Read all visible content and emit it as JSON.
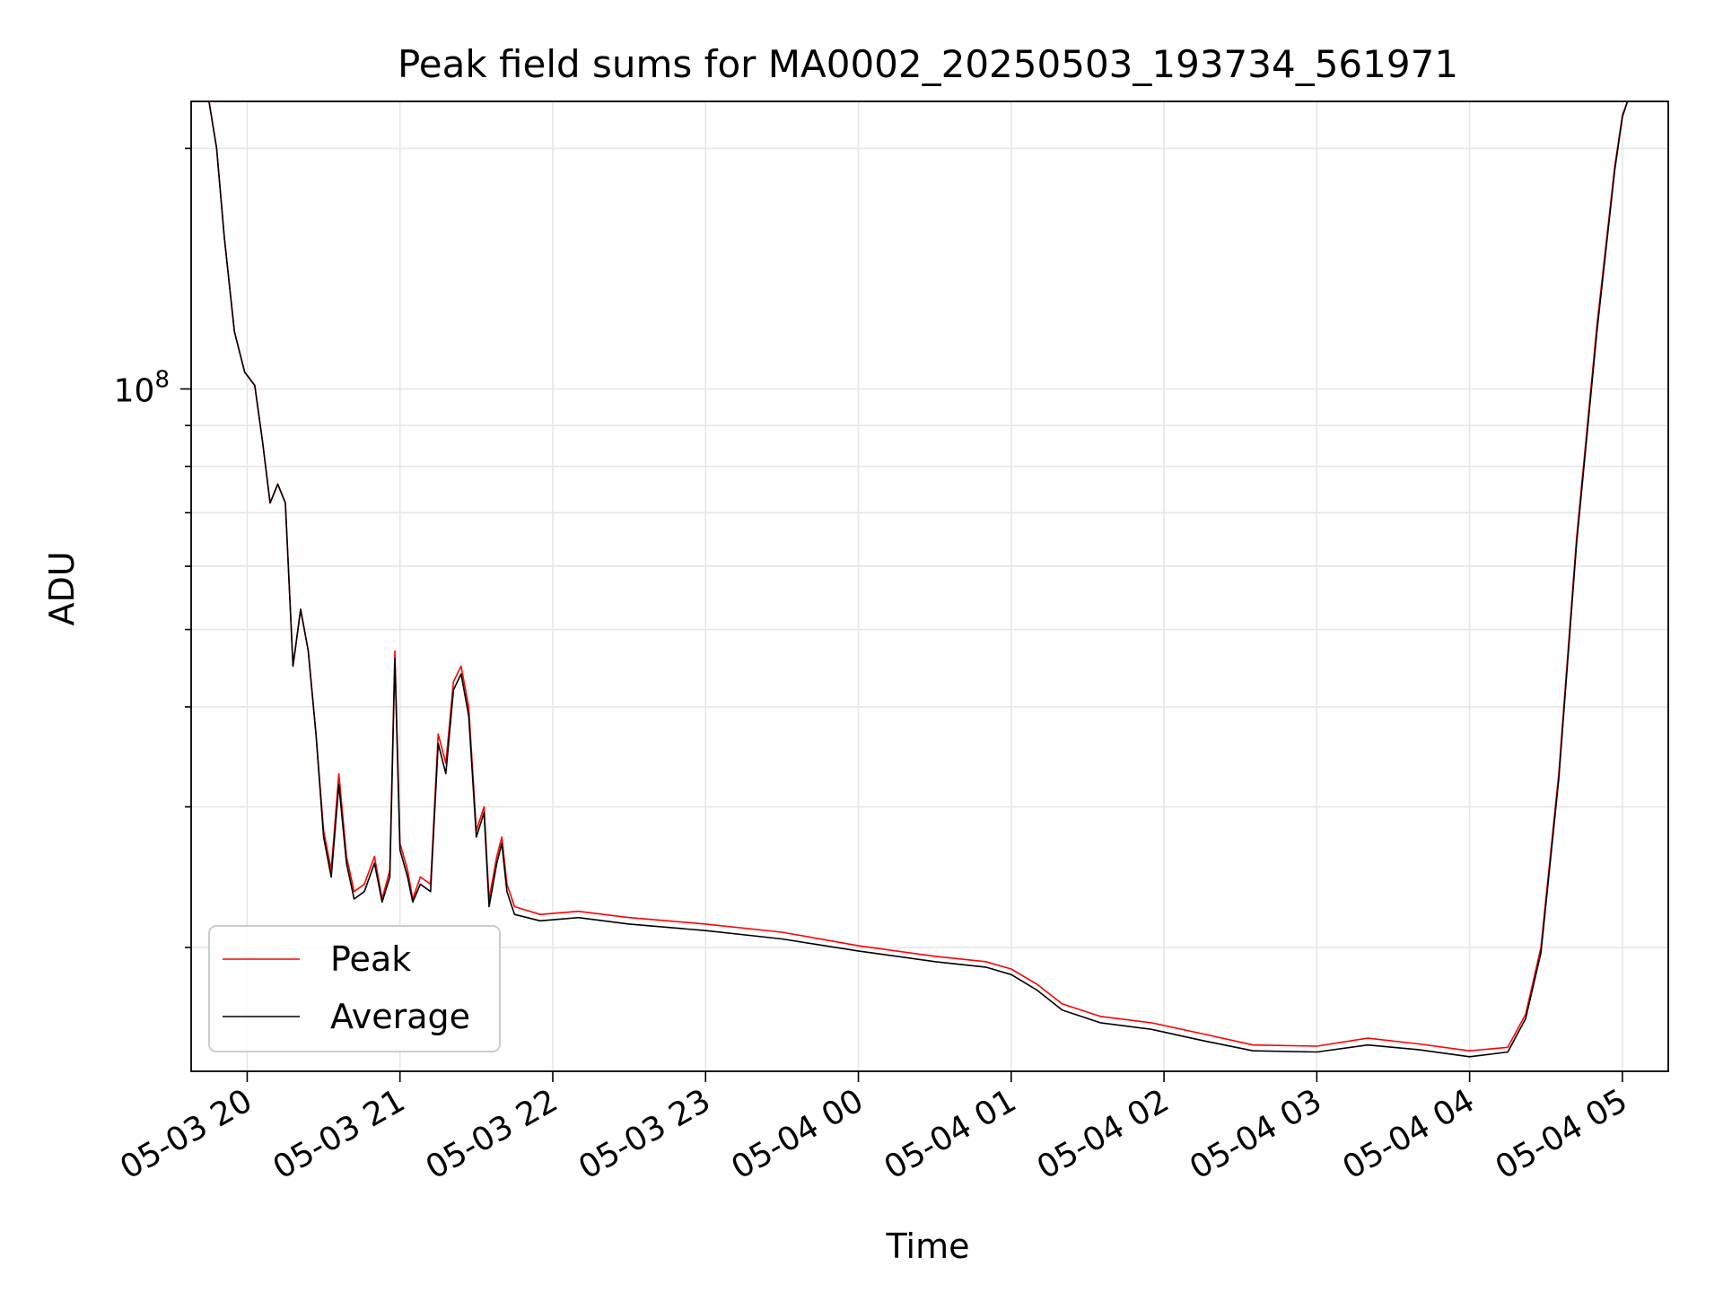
{
  "chart_data": {
    "type": "line",
    "title": "Peak field sums for MA0002_20250503_193734_561971",
    "xlabel": "Time",
    "ylabel": "ADU",
    "x_tick_labels": [
      "05-03 20",
      "05-03 21",
      "05-03 22",
      "05-03 23",
      "05-04 00",
      "05-04 01",
      "05-04 02",
      "05-04 03",
      "05-04 04",
      "05-04 05"
    ],
    "x_range": [
      "2025-05-03 19:38",
      "2025-05-04 05:18"
    ],
    "y_scale": "log",
    "y_range": [
      14000000,
      229000000
    ],
    "y_tick_label": {
      "base": "10",
      "exponent": "8"
    },
    "grid": true,
    "legend_position": "lower-left",
    "series": [
      {
        "name": "Peak",
        "color": "#ff0000",
        "points": [
          [
            "2025-05-03 19:38",
            229000000
          ],
          [
            "2025-05-03 19:45",
            229000000
          ],
          [
            "2025-05-03 19:48",
            200000000
          ],
          [
            "2025-05-03 19:51",
            155000000
          ],
          [
            "2025-05-03 19:55",
            118000000
          ],
          [
            "2025-05-03 19:59",
            105000000
          ],
          [
            "2025-05-03 20:03",
            101000000
          ],
          [
            "2025-05-03 20:06",
            86000000
          ],
          [
            "2025-05-03 20:09",
            72000000
          ],
          [
            "2025-05-03 20:12",
            76000000
          ],
          [
            "2025-05-03 20:15",
            72000000
          ],
          [
            "2025-05-03 20:18",
            45000000
          ],
          [
            "2025-05-03 20:21",
            53000000
          ],
          [
            "2025-05-03 20:24",
            47000000
          ],
          [
            "2025-05-03 20:27",
            37000000
          ],
          [
            "2025-05-03 20:30",
            28000000
          ],
          [
            "2025-05-03 20:33",
            25000000
          ],
          [
            "2025-05-03 20:36",
            33000000
          ],
          [
            "2025-05-03 20:39",
            26000000
          ],
          [
            "2025-05-03 20:42",
            23500000
          ],
          [
            "2025-05-03 20:46",
            24000000
          ],
          [
            "2025-05-03 20:50",
            26000000
          ],
          [
            "2025-05-03 20:53",
            23000000
          ],
          [
            "2025-05-03 20:56",
            25000000
          ],
          [
            "2025-05-03 20:58",
            47000000
          ],
          [
            "2025-05-03 21:00",
            27000000
          ],
          [
            "2025-05-03 21:03",
            25000000
          ],
          [
            "2025-05-03 21:05",
            23000000
          ],
          [
            "2025-05-03 21:08",
            24500000
          ],
          [
            "2025-05-03 21:12",
            24000000
          ],
          [
            "2025-05-03 21:15",
            37000000
          ],
          [
            "2025-05-03 21:18",
            34000000
          ],
          [
            "2025-05-03 21:21",
            43000000
          ],
          [
            "2025-05-03 21:24",
            45000000
          ],
          [
            "2025-05-03 21:27",
            40000000
          ],
          [
            "2025-05-03 21:30",
            28000000
          ],
          [
            "2025-05-03 21:33",
            30000000
          ],
          [
            "2025-05-03 21:35",
            23000000
          ],
          [
            "2025-05-03 21:38",
            26000000
          ],
          [
            "2025-05-03 21:40",
            27500000
          ],
          [
            "2025-05-03 21:42",
            24000000
          ],
          [
            "2025-05-03 21:45",
            22500000
          ],
          [
            "2025-05-03 21:55",
            22000000
          ],
          [
            "2025-05-03 22:10",
            22200000
          ],
          [
            "2025-05-03 22:30",
            21800000
          ],
          [
            "2025-05-03 23:00",
            21400000
          ],
          [
            "2025-05-03 23:30",
            20900000
          ],
          [
            "2025-05-04 00:00",
            20100000
          ],
          [
            "2025-05-04 00:30",
            19500000
          ],
          [
            "2025-05-04 00:50",
            19200000
          ],
          [
            "2025-05-04 01:00",
            18800000
          ],
          [
            "2025-05-04 01:10",
            18000000
          ],
          [
            "2025-05-04 01:20",
            17000000
          ],
          [
            "2025-05-04 01:35",
            16400000
          ],
          [
            "2025-05-04 01:55",
            16100000
          ],
          [
            "2025-05-04 02:15",
            15600000
          ],
          [
            "2025-05-04 02:35",
            15100000
          ],
          [
            "2025-05-04 03:00",
            15050000
          ],
          [
            "2025-05-04 03:20",
            15400000
          ],
          [
            "2025-05-04 03:40",
            15150000
          ],
          [
            "2025-05-04 04:00",
            14850000
          ],
          [
            "2025-05-04 04:15",
            15000000
          ],
          [
            "2025-05-04 04:22",
            16500000
          ],
          [
            "2025-05-04 04:28",
            20000000
          ],
          [
            "2025-05-04 04:35",
            33000000
          ],
          [
            "2025-05-04 04:42",
            65000000
          ],
          [
            "2025-05-04 04:50",
            120000000
          ],
          [
            "2025-05-04 04:57",
            190000000
          ],
          [
            "2025-05-04 05:00",
            220000000
          ],
          [
            "2025-05-04 05:02",
            229000000
          ]
        ]
      },
      {
        "name": "Average",
        "color": "#000000",
        "points": [
          [
            "2025-05-03 19:38",
            229000000
          ],
          [
            "2025-05-03 19:45",
            229000000
          ],
          [
            "2025-05-03 19:48",
            200000000
          ],
          [
            "2025-05-03 19:51",
            155000000
          ],
          [
            "2025-05-03 19:55",
            118000000
          ],
          [
            "2025-05-03 19:59",
            105000000
          ],
          [
            "2025-05-03 20:03",
            101000000
          ],
          [
            "2025-05-03 20:06",
            86000000
          ],
          [
            "2025-05-03 20:09",
            72000000
          ],
          [
            "2025-05-03 20:12",
            76000000
          ],
          [
            "2025-05-03 20:15",
            72000000
          ],
          [
            "2025-05-03 20:18",
            45000000
          ],
          [
            "2025-05-03 20:21",
            53000000
          ],
          [
            "2025-05-03 20:24",
            47000000
          ],
          [
            "2025-05-03 20:27",
            37000000
          ],
          [
            "2025-05-03 20:30",
            27500000
          ],
          [
            "2025-05-03 20:33",
            24500000
          ],
          [
            "2025-05-03 20:36",
            32000000
          ],
          [
            "2025-05-03 20:39",
            25500000
          ],
          [
            "2025-05-03 20:42",
            23000000
          ],
          [
            "2025-05-03 20:46",
            23500000
          ],
          [
            "2025-05-03 20:50",
            25500000
          ],
          [
            "2025-05-03 20:53",
            22800000
          ],
          [
            "2025-05-03 20:56",
            24500000
          ],
          [
            "2025-05-03 20:58",
            46000000
          ],
          [
            "2025-05-03 21:00",
            26500000
          ],
          [
            "2025-05-03 21:03",
            24500000
          ],
          [
            "2025-05-03 21:05",
            22800000
          ],
          [
            "2025-05-03 21:08",
            24000000
          ],
          [
            "2025-05-03 21:12",
            23500000
          ],
          [
            "2025-05-03 21:15",
            36000000
          ],
          [
            "2025-05-03 21:18",
            33000000
          ],
          [
            "2025-05-03 21:21",
            42000000
          ],
          [
            "2025-05-03 21:24",
            44000000
          ],
          [
            "2025-05-03 21:27",
            39000000
          ],
          [
            "2025-05-03 21:30",
            27500000
          ],
          [
            "2025-05-03 21:33",
            29500000
          ],
          [
            "2025-05-03 21:35",
            22500000
          ],
          [
            "2025-05-03 21:38",
            25500000
          ],
          [
            "2025-05-03 21:40",
            27000000
          ],
          [
            "2025-05-03 21:42",
            23500000
          ],
          [
            "2025-05-03 21:45",
            22000000
          ],
          [
            "2025-05-03 21:55",
            21600000
          ],
          [
            "2025-05-03 22:10",
            21800000
          ],
          [
            "2025-05-03 22:30",
            21400000
          ],
          [
            "2025-05-03 23:00",
            21000000
          ],
          [
            "2025-05-03 23:30",
            20500000
          ],
          [
            "2025-05-04 00:00",
            19800000
          ],
          [
            "2025-05-04 00:30",
            19200000
          ],
          [
            "2025-05-04 00:50",
            18900000
          ],
          [
            "2025-05-04 01:00",
            18500000
          ],
          [
            "2025-05-04 01:10",
            17700000
          ],
          [
            "2025-05-04 01:20",
            16700000
          ],
          [
            "2025-05-04 01:35",
            16100000
          ],
          [
            "2025-05-04 01:55",
            15800000
          ],
          [
            "2025-05-04 02:15",
            15300000
          ],
          [
            "2025-05-04 02:35",
            14850000
          ],
          [
            "2025-05-04 03:00",
            14800000
          ],
          [
            "2025-05-04 03:20",
            15100000
          ],
          [
            "2025-05-04 03:40",
            14900000
          ],
          [
            "2025-05-04 04:00",
            14600000
          ],
          [
            "2025-05-04 04:15",
            14800000
          ],
          [
            "2025-05-04 04:22",
            16300000
          ],
          [
            "2025-05-04 04:28",
            19700000
          ],
          [
            "2025-05-04 04:35",
            32500000
          ],
          [
            "2025-05-04 04:42",
            64000000
          ],
          [
            "2025-05-04 04:50",
            118000000
          ],
          [
            "2025-05-04 04:57",
            188000000
          ],
          [
            "2025-05-04 05:00",
            219000000
          ],
          [
            "2025-05-04 05:02",
            229000000
          ]
        ]
      }
    ]
  }
}
